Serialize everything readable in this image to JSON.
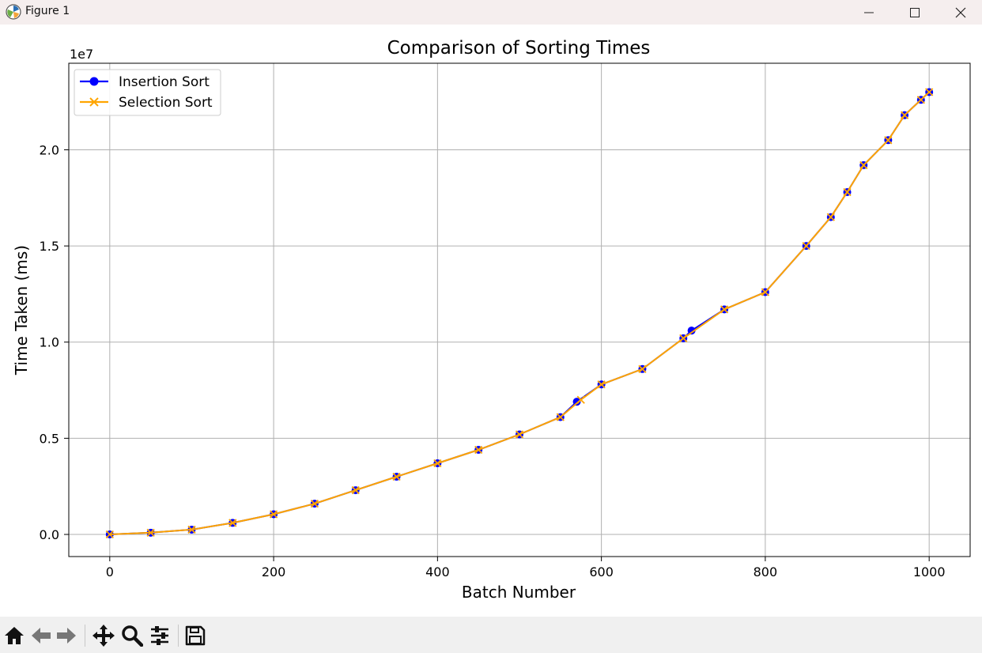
{
  "window": {
    "title": "Figure 1",
    "minimize_icon": "minimize-icon",
    "maximize_icon": "maximize-icon",
    "close_icon": "close-icon"
  },
  "toolbar": {
    "buttons": [
      "home-icon",
      "back-arrow-icon",
      "forward-arrow-icon",
      "pan-icon",
      "zoom-icon",
      "configure-subplots-icon",
      "save-icon"
    ]
  },
  "chart_data": {
    "type": "line",
    "title": "Comparison of Sorting Times",
    "xlabel": "Batch Number",
    "ylabel": "Time Taken (ms)",
    "y_offset_label": "1e7",
    "xlim": [
      -50,
      1050
    ],
    "ylim": [
      -1150000,
      24500000
    ],
    "xticks": [
      0,
      200,
      400,
      600,
      800,
      1000
    ],
    "xtick_labels": [
      "0",
      "200",
      "400",
      "600",
      "800",
      "1000"
    ],
    "yticks": [
      0,
      5000000,
      10000000,
      15000000,
      20000000
    ],
    "ytick_labels": [
      "0.0",
      "0.5",
      "1.0",
      "1.5",
      "2.0"
    ],
    "grid": true,
    "legend_position": "upper-left",
    "series": [
      {
        "name": "Insertion Sort",
        "color": "#0000ff",
        "marker": "o",
        "x": [
          0,
          50,
          100,
          150,
          200,
          250,
          300,
          350,
          400,
          450,
          500,
          550,
          570,
          600,
          650,
          700,
          710,
          750,
          800,
          850,
          880,
          900,
          920,
          950,
          970,
          990,
          1000
        ],
        "y": [
          0,
          90000,
          250000,
          600000,
          1050000,
          1600000,
          2300000,
          3000000,
          3700000,
          4400000,
          5200000,
          6100000,
          6900000,
          7800000,
          8600000,
          10200000,
          10600000,
          11700000,
          12600000,
          15000000,
          16500000,
          17800000,
          19200000,
          20500000,
          21800000,
          22600000,
          23000000
        ]
      },
      {
        "name": "Selection Sort",
        "color": "#ffa500",
        "marker": "x",
        "x": [
          0,
          50,
          100,
          150,
          200,
          250,
          300,
          350,
          400,
          450,
          500,
          550,
          575,
          600,
          650,
          700,
          750,
          800,
          850,
          880,
          900,
          920,
          950,
          970,
          990,
          1000
        ],
        "y": [
          0,
          90000,
          250000,
          600000,
          1050000,
          1600000,
          2300000,
          3000000,
          3700000,
          4400000,
          5200000,
          6100000,
          7000000,
          7800000,
          8600000,
          10200000,
          11700000,
          12600000,
          15000000,
          16500000,
          17800000,
          19200000,
          20500000,
          21800000,
          22600000,
          23000000
        ]
      }
    ]
  }
}
